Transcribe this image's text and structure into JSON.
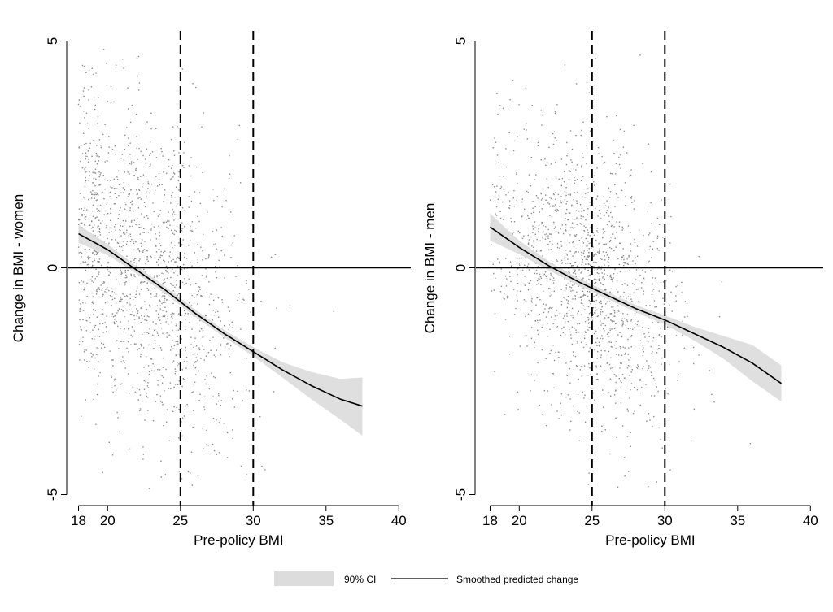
{
  "chart_data": [
    {
      "type": "scatter",
      "xlabel": "Pre-policy BMI",
      "ylabel": "Change in BMI - women",
      "xlim": [
        17,
        41
      ],
      "ylim": [
        -5.3,
        5.3
      ],
      "x_ticks": [
        18,
        20,
        25,
        30,
        35,
        40
      ],
      "y_ticks": [
        -5,
        0,
        5
      ],
      "vertical_reference_lines": [
        25,
        30
      ],
      "horizontal_reference_line": 0,
      "grid": false,
      "scatter_summary": "gray raw data points, dense between BMI 18 and 30, y mostly between -4.8 and 4.8",
      "smoothed_predicted_change": {
        "x": [
          18,
          20,
          22,
          24,
          26,
          28,
          30,
          32,
          34,
          36,
          37.5
        ],
        "y": [
          0.75,
          0.4,
          -0.05,
          -0.5,
          -1.0,
          -1.45,
          -1.85,
          -2.25,
          -2.6,
          -2.9,
          -3.05
        ]
      },
      "ci_90": {
        "x": [
          18,
          20,
          22,
          24,
          26,
          28,
          30,
          32,
          34,
          36,
          37.5
        ],
        "lower": [
          0.55,
          0.28,
          -0.13,
          -0.58,
          -1.08,
          -1.53,
          -1.95,
          -2.42,
          -2.9,
          -3.35,
          -3.7
        ],
        "upper": [
          0.95,
          0.52,
          0.03,
          -0.42,
          -0.92,
          -1.37,
          -1.75,
          -2.08,
          -2.3,
          -2.45,
          -2.42
        ]
      }
    },
    {
      "type": "scatter",
      "xlabel": "Pre-policy BMI",
      "ylabel": "Change in BMI - men",
      "xlim": [
        17,
        41
      ],
      "ylim": [
        -5.3,
        5.3
      ],
      "x_ticks": [
        18,
        20,
        25,
        30,
        35,
        40
      ],
      "y_ticks": [
        -5,
        0,
        5
      ],
      "vertical_reference_lines": [
        25,
        30
      ],
      "horizontal_reference_line": 0,
      "grid": false,
      "scatter_summary": "gray raw data points, dense between BMI 19 and 31, y mostly between -4.9 and 4.4",
      "smoothed_predicted_change": {
        "x": [
          18,
          20,
          22,
          24,
          26,
          28,
          30,
          32,
          34,
          36,
          38
        ],
        "y": [
          0.9,
          0.45,
          0.05,
          -0.3,
          -0.6,
          -0.9,
          -1.15,
          -1.45,
          -1.75,
          -2.1,
          -2.55
        ]
      },
      "ci_90": {
        "x": [
          18,
          20,
          22,
          24,
          26,
          28,
          30,
          32,
          34,
          36,
          38
        ],
        "lower": [
          0.6,
          0.3,
          -0.05,
          -0.38,
          -0.68,
          -0.98,
          -1.25,
          -1.6,
          -2.0,
          -2.5,
          -2.95
        ],
        "upper": [
          1.2,
          0.6,
          0.15,
          -0.22,
          -0.52,
          -0.82,
          -1.05,
          -1.3,
          -1.5,
          -1.7,
          -2.15
        ]
      }
    }
  ],
  "legend": {
    "placement": "bottom-center",
    "entries": [
      {
        "label": "90% CI",
        "color": "#dcdcdc",
        "kind": "area"
      },
      {
        "label": "Smoothed predicted change",
        "color": "#000000",
        "kind": "line"
      }
    ]
  },
  "colors": {
    "scatter": "#8c8c8c",
    "ci_fill": "#dcdcdc",
    "line": "#000000",
    "reference": "#000000"
  }
}
